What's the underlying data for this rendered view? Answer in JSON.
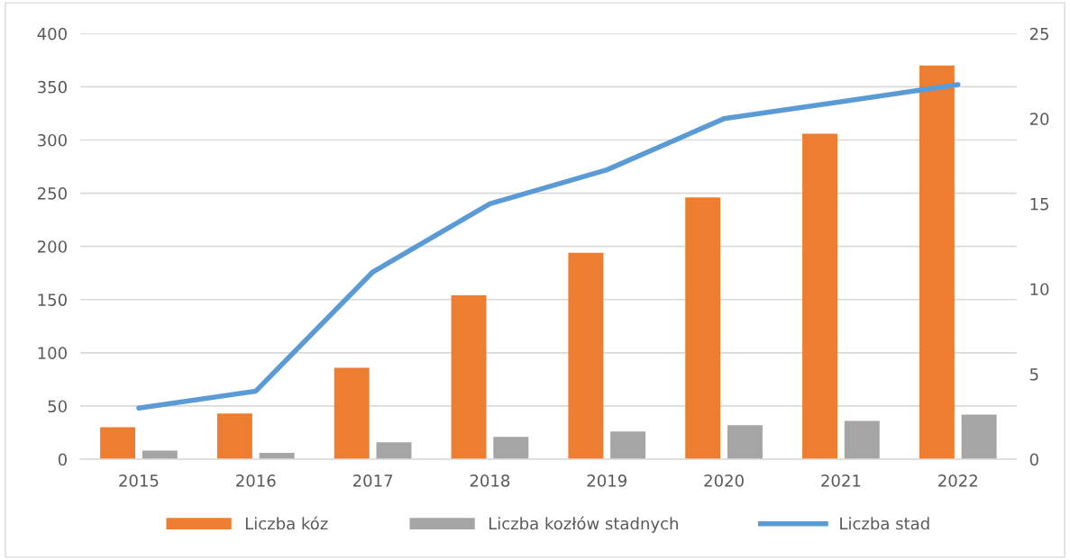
{
  "chart_data": {
    "type": "bar",
    "categories": [
      "2015",
      "2016",
      "2017",
      "2018",
      "2019",
      "2020",
      "2021",
      "2022"
    ],
    "series": [
      {
        "name": "Liczba kóz",
        "color": "#ed7d31",
        "values": [
          30,
          43,
          86,
          154,
          194,
          246,
          306,
          370
        ]
      },
      {
        "name": "Liczba kozłów stadnych",
        "color": "#a5a5a5",
        "values": [
          8,
          6,
          16,
          21,
          26,
          32,
          36,
          42
        ]
      },
      {
        "name": "Liczba stad",
        "type": "line",
        "axis": "y2",
        "color": "#5b9bd5",
        "values": [
          3,
          4,
          11,
          15,
          17,
          20,
          21,
          22
        ]
      }
    ],
    "ylim": [
      0,
      400
    ],
    "yticks": [
      0,
      50,
      100,
      150,
      200,
      250,
      300,
      350,
      400
    ],
    "y2lim": [
      0,
      25
    ],
    "y2ticks": [
      0,
      5,
      10,
      15,
      20,
      25
    ],
    "grid": "y",
    "legend": "bottom",
    "line_style": "solid",
    "marker": "none"
  }
}
